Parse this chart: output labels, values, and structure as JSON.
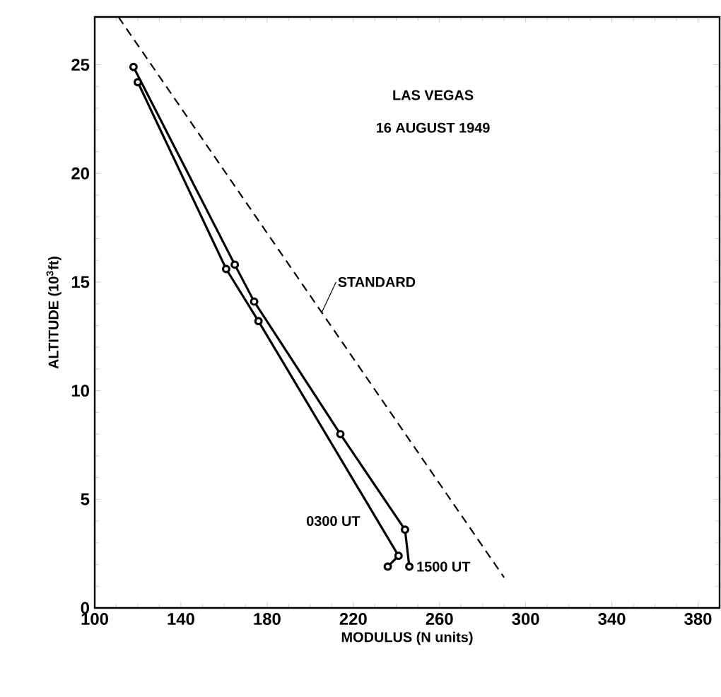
{
  "chart_data": {
    "type": "line",
    "xlabel": "MODULUS (N units)",
    "ylabel": "ALTITUDE (10$^{3}$ft)",
    "xlim": [
      100,
      390
    ],
    "ylim": [
      0,
      27.2
    ],
    "xticks": [
      100,
      140,
      180,
      220,
      260,
      300,
      340,
      380
    ],
    "yticks": [
      0,
      5,
      10,
      15,
      20,
      25
    ],
    "grid": false,
    "legend": false,
    "annotations": [
      "LAS VEGAS",
      "16 AUGUST 1949"
    ],
    "series": [
      {
        "name": "STANDARD",
        "color": "#000000",
        "line_style": "dashed",
        "marker": "none",
        "x": [
          111,
          290
        ],
        "values": [
          27.2,
          1.4
        ]
      },
      {
        "name": "1500 UT",
        "color": "#000000",
        "line_style": "solid",
        "marker": "circle",
        "x": [
          118,
          165,
          174,
          214,
          244,
          246
        ],
        "values": [
          24.9,
          15.8,
          14.1,
          8.0,
          3.6,
          1.9
        ]
      },
      {
        "name": "0300 UT",
        "color": "#000000",
        "line_style": "solid",
        "marker": "circle",
        "x": [
          120,
          161,
          176,
          241,
          236
        ],
        "values": [
          24.2,
          15.6,
          13.2,
          2.4,
          1.9
        ]
      }
    ]
  }
}
